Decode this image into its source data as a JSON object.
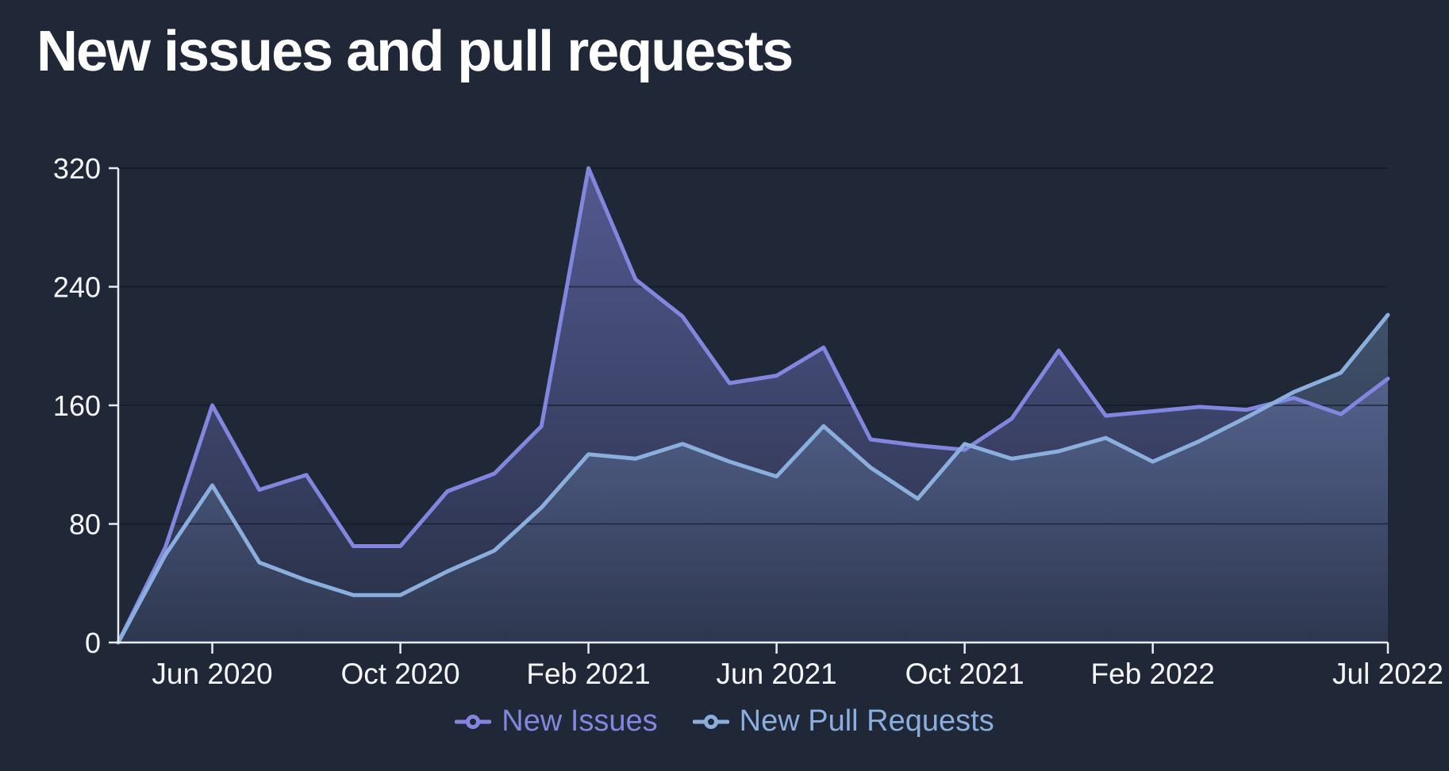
{
  "title": "New issues and pull requests",
  "colors": {
    "background": "#202838",
    "issues": "#8286de",
    "pull_requests": "#8aaedd",
    "issues_fill_top": "rgba(130,134,224,0.52)",
    "issues_fill_bottom": "rgba(130,134,224,0.08)",
    "pull_requests_fill_top": "rgba(138,174,221,0.42)",
    "pull_requests_fill_bottom": "rgba(138,174,221,0.06)",
    "axis": "#e9ecf2",
    "text": "#f5f7fa",
    "grid": "rgba(14,20,34,0.55)"
  },
  "legend": [
    {
      "label": "New Issues",
      "color_key": "issues"
    },
    {
      "label": "New Pull Requests",
      "color_key": "pull_requests"
    }
  ],
  "chart_data": {
    "type": "area",
    "title": "New issues and pull requests",
    "xlabel": "",
    "ylabel": "",
    "ylim": [
      0,
      320
    ],
    "y_ticks": [
      0,
      80,
      160,
      240,
      320
    ],
    "grid": "horizontal-only",
    "legend_position": "bottom-center",
    "x": [
      "Apr 2020",
      "May 2020",
      "Jun 2020",
      "Jul 2020",
      "Aug 2020",
      "Sep 2020",
      "Oct 2020",
      "Nov 2020",
      "Dec 2020",
      "Jan 2021",
      "Feb 2021",
      "Mar 2021",
      "Apr 2021",
      "May 2021",
      "Jun 2021",
      "Jul 2021",
      "Aug 2021",
      "Sep 2021",
      "Oct 2021",
      "Nov 2021",
      "Dec 2021",
      "Jan 2022",
      "Feb 2022",
      "Mar 2022",
      "Apr 2022",
      "May 2022",
      "Jun 2022",
      "Jul 2022"
    ],
    "x_tick_indices": [
      2,
      6,
      10,
      14,
      18,
      22,
      27
    ],
    "x_tick_labels": [
      "Jun 2020",
      "Oct 2020",
      "Feb 2021",
      "Jun 2021",
      "Oct 2021",
      "Feb 2022",
      "Jul 2022"
    ],
    "series": [
      {
        "name": "New Issues",
        "color_key": "issues",
        "values": [
          0,
          64,
          160,
          103,
          113,
          65,
          65,
          102,
          114,
          146,
          320,
          245,
          220,
          175,
          180,
          199,
          137,
          133,
          130,
          151,
          197,
          153,
          156,
          159,
          157,
          165,
          154,
          178
        ]
      },
      {
        "name": "New Pull Requests",
        "color_key": "pull_requests",
        "values": [
          0,
          59,
          106,
          54,
          42,
          32,
          32,
          48,
          62,
          91,
          127,
          124,
          134,
          122,
          112,
          146,
          118,
          97,
          134,
          124,
          129,
          138,
          122,
          136,
          152,
          169,
          182,
          221
        ]
      }
    ]
  }
}
